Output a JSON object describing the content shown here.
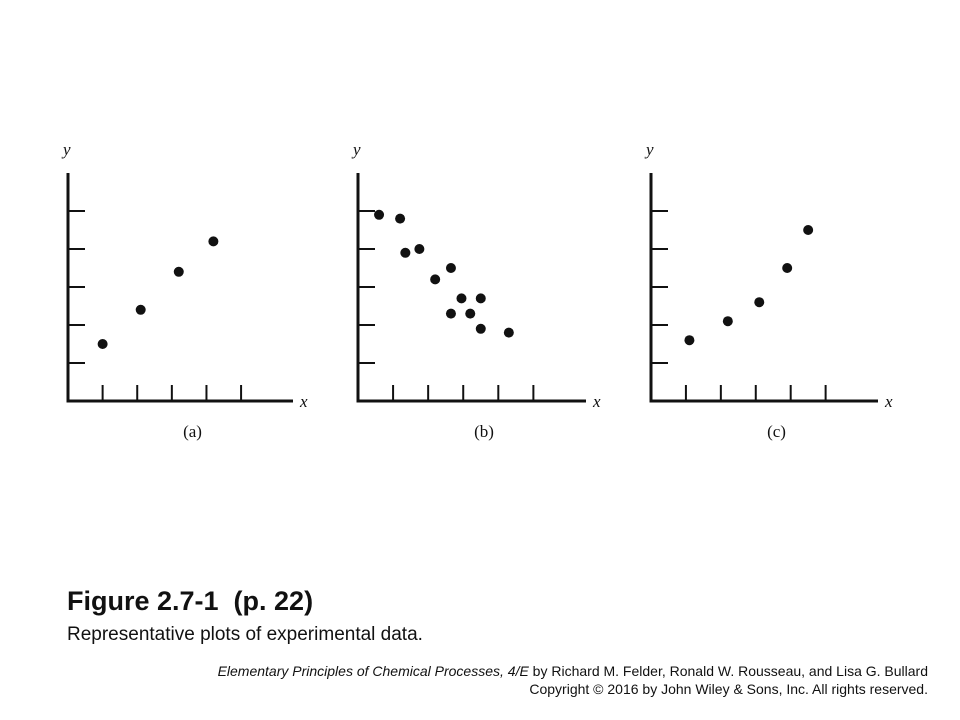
{
  "chart_data": [
    {
      "type": "scatter",
      "panel_label": "(a)",
      "xlabel": "x",
      "ylabel": "y",
      "xlim": [
        0,
        6.5
      ],
      "ylim": [
        0,
        6
      ],
      "x_ticks": [
        1,
        2,
        3,
        4,
        5
      ],
      "y_ticks": [
        1,
        2,
        3,
        4,
        5
      ],
      "grid": false,
      "x": [
        1.0,
        2.1,
        3.2,
        4.2
      ],
      "y": [
        1.5,
        2.4,
        3.4,
        4.2
      ]
    },
    {
      "type": "scatter",
      "panel_label": "(b)",
      "xlabel": "x",
      "ylabel": "y",
      "xlim": [
        0,
        6.5
      ],
      "ylim": [
        0,
        6
      ],
      "x_ticks": [
        1,
        2,
        3,
        4,
        5
      ],
      "y_ticks": [
        1,
        2,
        3,
        4,
        5
      ],
      "grid": false,
      "x": [
        0.6,
        1.2,
        1.35,
        1.75,
        2.2,
        2.65,
        2.65,
        2.95,
        3.2,
        3.5,
        3.5,
        4.3
      ],
      "y": [
        4.9,
        4.8,
        3.9,
        4.0,
        3.2,
        3.5,
        2.3,
        2.7,
        2.3,
        2.7,
        1.9,
        1.8
      ]
    },
    {
      "type": "scatter",
      "panel_label": "(c)",
      "xlabel": "x",
      "ylabel": "y",
      "xlim": [
        0,
        6.5
      ],
      "ylim": [
        0,
        6
      ],
      "x_ticks": [
        1,
        2,
        3,
        4,
        5
      ],
      "y_ticks": [
        1,
        2,
        3,
        4,
        5
      ],
      "grid": false,
      "x": [
        1.1,
        2.2,
        3.1,
        3.9,
        4.5
      ],
      "y": [
        1.6,
        2.1,
        2.6,
        3.5,
        4.5
      ]
    }
  ],
  "figure": {
    "title": "Figure 2.7-1  (p. 22)",
    "caption": "Representative plots of experimental data."
  },
  "credit": {
    "book_title": "Elementary Principles of Chemical Processes, 4/E",
    "authors": " by  Richard M. Felder, Ronald W. Rousseau, and Lisa G. Bullard",
    "copyright": "Copyright © 2016 by John Wiley & Sons, Inc.  All rights reserved."
  },
  "colors": {
    "ink": "#111111",
    "background": "#ffffff"
  }
}
